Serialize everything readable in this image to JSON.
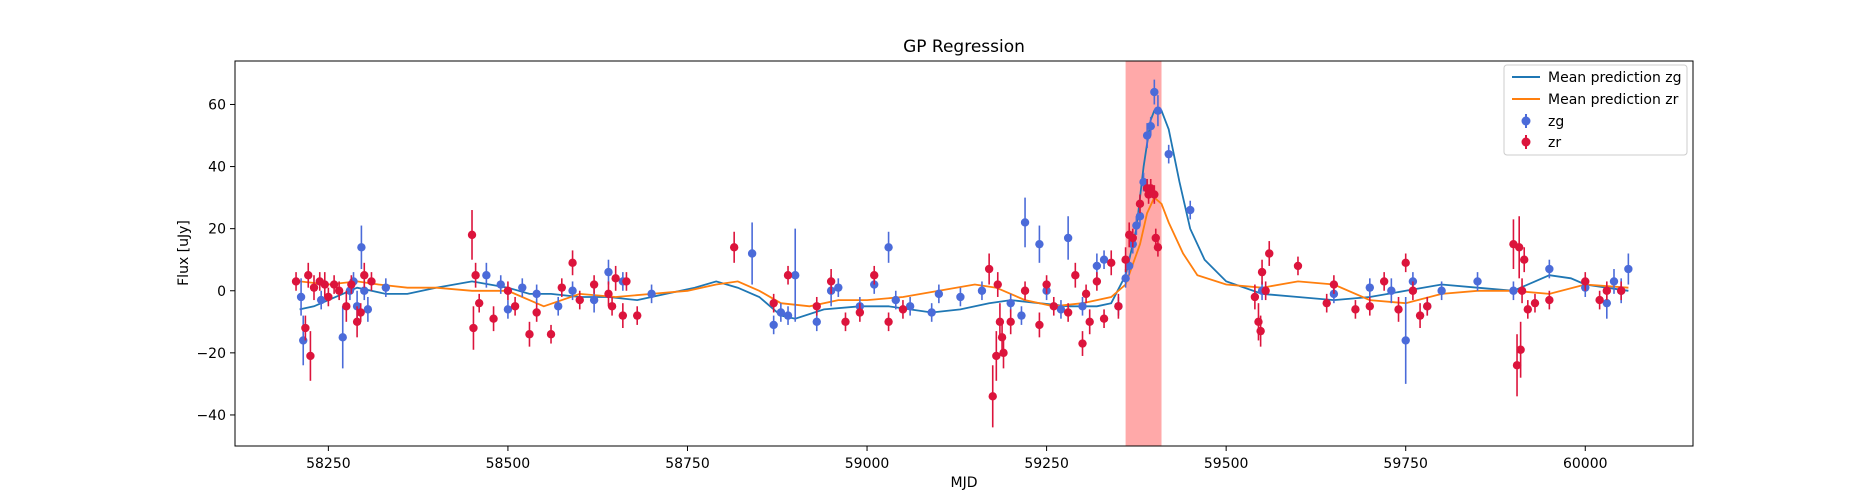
{
  "chart_data": {
    "type": "scatter",
    "title": "GP Regression",
    "xlabel": "MJD",
    "ylabel": "Flux [uJy]",
    "xlim": [
      58120,
      60150
    ],
    "ylim": [
      -50,
      74
    ],
    "xticks": [
      58250,
      58500,
      58750,
      59000,
      59250,
      59500,
      59750,
      60000
    ],
    "yticks": [
      -40,
      -20,
      0,
      20,
      40,
      60
    ],
    "legend_position": "top-right",
    "highlight_span": {
      "x0": 59360,
      "x1": 59410,
      "color": "#ff9a9a"
    },
    "series": [
      {
        "name": "Mean prediction zg",
        "kind": "line",
        "color": "#1f77b4",
        "x": [
          58210,
          58230,
          58250,
          58270,
          58290,
          58310,
          58330,
          58360,
          58400,
          58450,
          58500,
          58530,
          58560,
          58600,
          58640,
          58680,
          58720,
          58760,
          58790,
          58820,
          58850,
          58880,
          58900,
          58940,
          58990,
          59030,
          59060,
          59090,
          59130,
          59170,
          59200,
          59240,
          59280,
          59320,
          59340,
          59360,
          59375,
          59385,
          59395,
          59400,
          59410,
          59420,
          59435,
          59450,
          59470,
          59500,
          59550,
          59600,
          59650,
          59700,
          59750,
          59800,
          59850,
          59900,
          59930,
          59950,
          59980,
          60000,
          60030,
          60060
        ],
        "values": [
          -6,
          -5,
          -3,
          -1,
          1,
          0,
          -1,
          -1,
          1,
          3,
          1,
          -1,
          -1,
          -2,
          -2,
          -3,
          -1,
          1,
          3,
          1,
          -2,
          -8,
          -9,
          -6,
          -5,
          -5,
          -6,
          -7,
          -6,
          -4,
          -3,
          -4,
          -5,
          -5,
          -4,
          5,
          20,
          40,
          55,
          58,
          58,
          52,
          35,
          20,
          10,
          3,
          -1,
          -2,
          -3,
          -2,
          0,
          2,
          1,
          0,
          3,
          5,
          4,
          2,
          1,
          0
        ]
      },
      {
        "name": "Mean prediction zr",
        "kind": "line",
        "color": "#ff7f0e",
        "x": [
          58210,
          58250,
          58290,
          58320,
          58360,
          58400,
          58450,
          58500,
          58550,
          58600,
          58650,
          58700,
          58750,
          58790,
          58820,
          58850,
          58880,
          58920,
          58960,
          59000,
          59050,
          59100,
          59150,
          59180,
          59220,
          59260,
          59300,
          59340,
          59360,
          59380,
          59390,
          59400,
          59410,
          59420,
          59440,
          59460,
          59500,
          59550,
          59600,
          59650,
          59700,
          59750,
          59800,
          59850,
          59900,
          59950,
          60000,
          60060
        ],
        "values": [
          3,
          2,
          3,
          2,
          1,
          1,
          0,
          0,
          -5,
          -1,
          -2,
          -1,
          0,
          2,
          3,
          0,
          -4,
          -5,
          -3,
          -3,
          -2,
          0,
          2,
          1,
          -3,
          -5,
          -4,
          -2,
          2,
          15,
          25,
          30,
          28,
          22,
          12,
          5,
          2,
          1,
          3,
          2,
          -3,
          -4,
          -1,
          0,
          0,
          -1,
          2,
          1
        ]
      },
      {
        "name": "zg",
        "kind": "errorbar",
        "color": "#4b6bd9",
        "x": [
          58212,
          58215,
          58240,
          58270,
          58280,
          58285,
          58290,
          58296,
          58300,
          58305,
          58330,
          58470,
          58490,
          58500,
          58520,
          58540,
          58570,
          58590,
          58620,
          58640,
          58660,
          58700,
          58840,
          58870,
          58880,
          58890,
          58900,
          58930,
          58950,
          58960,
          58990,
          59010,
          59030,
          59040,
          59060,
          59090,
          59100,
          59130,
          59160,
          59200,
          59215,
          59220,
          59240,
          59250,
          59270,
          59280,
          59300,
          59320,
          59330,
          59350,
          59360,
          59365,
          59370,
          59375,
          59380,
          59385,
          59390,
          59395,
          59400,
          59405,
          59420,
          59450,
          59550,
          59650,
          59700,
          59730,
          59750,
          59760,
          59780,
          59800,
          59850,
          59900,
          59950,
          60000,
          60030,
          60040,
          60050,
          60060
        ],
        "values": [
          -2,
          -16,
          -3,
          -15,
          0,
          3,
          -5,
          14,
          0,
          -6,
          1,
          5,
          2,
          -6,
          1,
          -1,
          -5,
          0,
          -3,
          6,
          3,
          -1,
          12,
          -11,
          -7,
          -8,
          5,
          -10,
          0,
          1,
          -5,
          2,
          14,
          -3,
          -5,
          -7,
          -1,
          -2,
          0,
          -4,
          -8,
          22,
          15,
          0,
          -6,
          17,
          -5,
          8,
          10,
          -5,
          4,
          8,
          15,
          21,
          24,
          35,
          50,
          53,
          64,
          58,
          44,
          26,
          0,
          -1,
          1,
          0,
          -16,
          3,
          -5,
          0,
          3,
          0,
          7,
          1,
          -4,
          3,
          0,
          7
        ],
        "errors": [
          6,
          8,
          3,
          10,
          3,
          3,
          5,
          7,
          3,
          4,
          3,
          4,
          3,
          3,
          3,
          3,
          3,
          3,
          4,
          4,
          3,
          3,
          10,
          3,
          3,
          3,
          15,
          3,
          5,
          3,
          3,
          3,
          5,
          3,
          3,
          3,
          3,
          3,
          3,
          3,
          3,
          8,
          6,
          3,
          3,
          7,
          3,
          4,
          3,
          3,
          3,
          3,
          3,
          3,
          3,
          3,
          4,
          3,
          4,
          5,
          3,
          3,
          3,
          3,
          3,
          4,
          14,
          3,
          3,
          3,
          3,
          3,
          3,
          3,
          5,
          4,
          4,
          5
        ]
      },
      {
        "name": "zr",
        "kind": "errorbar",
        "color": "#dc143c",
        "x": [
          58205,
          58218,
          58222,
          58225,
          58230,
          58238,
          58245,
          58250,
          58258,
          58265,
          58275,
          58282,
          58290,
          58295,
          58300,
          58310,
          58450,
          58452,
          58455,
          58460,
          58480,
          58500,
          58510,
          58530,
          58540,
          58560,
          58575,
          58590,
          58600,
          58620,
          58640,
          58645,
          58650,
          58660,
          58665,
          58680,
          58815,
          58870,
          58890,
          58930,
          58950,
          58970,
          58990,
          59010,
          59030,
          59050,
          59170,
          59175,
          59180,
          59182,
          59185,
          59188,
          59190,
          59200,
          59220,
          59240,
          59250,
          59260,
          59280,
          59290,
          59300,
          59305,
          59310,
          59320,
          59330,
          59340,
          59350,
          59360,
          59365,
          59370,
          59380,
          59390,
          59392,
          59395,
          59400,
          59402,
          59405,
          59540,
          59545,
          59548,
          59550,
          59555,
          59560,
          59600,
          59640,
          59650,
          59680,
          59700,
          59720,
          59740,
          59750,
          59760,
          59770,
          59780,
          59900,
          59905,
          59908,
          59910,
          59912,
          59915,
          59920,
          59930,
          59950,
          60000,
          60020,
          60030,
          60050
        ],
        "values": [
          3,
          -12,
          5,
          -21,
          1,
          3,
          2,
          -2,
          2,
          0,
          -5,
          2,
          -10,
          -7,
          5,
          3,
          18,
          -12,
          5,
          -4,
          -9,
          0,
          -5,
          -14,
          -7,
          -14,
          1,
          9,
          -3,
          2,
          -1,
          -5,
          4,
          -8,
          3,
          -8,
          14,
          -4,
          5,
          -5,
          3,
          -10,
          -7,
          5,
          -10,
          -6,
          7,
          -34,
          -21,
          2,
          -10,
          -15,
          -20,
          -10,
          0,
          -11,
          2,
          -5,
          -7,
          5,
          -17,
          -1,
          -10,
          3,
          -9,
          9,
          -5,
          10,
          18,
          17,
          28,
          33,
          31,
          33,
          31,
          17,
          14,
          -2,
          -10,
          -13,
          6,
          0,
          12,
          8,
          -4,
          2,
          -6,
          -5,
          3,
          -6,
          9,
          0,
          -8,
          -5,
          15,
          -24,
          14,
          -19,
          0,
          10,
          -6,
          -4,
          -3,
          3,
          -3,
          0,
          0
        ],
        "errors": [
          3,
          4,
          4,
          8,
          4,
          3,
          4,
          3,
          3,
          3,
          5,
          3,
          5,
          3,
          4,
          3,
          8,
          7,
          4,
          3,
          4,
          3,
          3,
          4,
          3,
          3,
          3,
          4,
          3,
          3,
          4,
          3,
          4,
          4,
          3,
          3,
          5,
          3,
          3,
          3,
          4,
          3,
          3,
          3,
          3,
          3,
          5,
          10,
          8,
          4,
          6,
          5,
          5,
          4,
          3,
          4,
          3,
          3,
          3,
          4,
          4,
          3,
          4,
          3,
          3,
          4,
          4,
          4,
          4,
          3,
          3,
          3,
          3,
          3,
          3,
          3,
          3,
          4,
          6,
          5,
          4,
          3,
          4,
          3,
          3,
          3,
          3,
          3,
          3,
          4,
          3,
          3,
          4,
          3,
          8,
          10,
          10,
          9,
          4,
          4,
          3,
          3,
          3,
          3,
          3,
          3,
          3
        ]
      }
    ]
  }
}
